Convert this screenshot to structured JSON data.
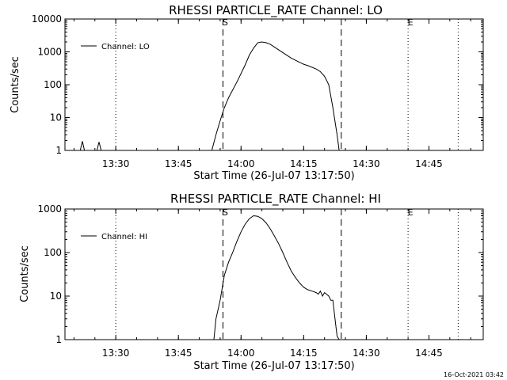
{
  "chart_data": [
    {
      "type": "line",
      "title": "RHESSI PARTICLE_RATE Channel: LO",
      "ylabel": "Counts/sec",
      "xlabel": "Start Time (26-Jul-07 13:17:50)",
      "legend": "Channel: LO",
      "legend_position": "top-left",
      "y_scale": "log",
      "xlim": [
        "13:17:50",
        "14:58:00"
      ],
      "ylim": [
        1,
        10000
      ],
      "x_tick_labels": [
        "13:30",
        "13:45",
        "14:00",
        "14:15",
        "14:30",
        "14:45"
      ],
      "y_tick_labels": [
        "1",
        "10",
        "100",
        "1000",
        "10000"
      ],
      "markers": [
        {
          "label": "S",
          "time": "13:55:40",
          "style": "dashed"
        },
        {
          "label": "",
          "time": "14:24:00",
          "style": "dashed"
        },
        {
          "label": "E",
          "time": "14:40:00",
          "style": "dotted"
        },
        {
          "label": "",
          "time": "13:30:00",
          "style": "dotted"
        },
        {
          "label": "",
          "time": "14:52:00",
          "style": "dotted"
        }
      ],
      "series": [
        {
          "name": "Channel: LO",
          "x": [
            "13:17:50",
            "13:21:30",
            "13:22:00",
            "13:22:30",
            "13:25:30",
            "13:26:00",
            "13:26:30",
            "13:53:00",
            "13:54:00",
            "13:55:00",
            "13:56:00",
            "13:57:00",
            "13:59:00",
            "14:01:00",
            "14:02:00",
            "14:03:00",
            "14:04:00",
            "14:05:00",
            "14:06:00",
            "14:07:00",
            "14:08:00",
            "14:10:00",
            "14:12:00",
            "14:14:00",
            "14:15:00",
            "14:16:00",
            "14:18:00",
            "14:19:00",
            "14:20:00",
            "14:21:00",
            "14:22:00",
            "14:23:00",
            "14:23:30"
          ],
          "y": [
            1,
            1,
            1.9,
            1,
            1,
            1.8,
            1,
            1,
            3,
            8,
            20,
            40,
            120,
            400,
            800,
            1300,
            1900,
            2000,
            1900,
            1700,
            1400,
            950,
            650,
            480,
            420,
            380,
            300,
            250,
            180,
            100,
            20,
            3,
            1
          ]
        }
      ]
    },
    {
      "type": "line",
      "title": "RHESSI PARTICLE_RATE Channel: HI",
      "ylabel": "Counts/sec",
      "xlabel": "Start Time (26-Jul-07 13:17:50)",
      "legend": "Channel: HI",
      "legend_position": "top-left",
      "y_scale": "log",
      "xlim": [
        "13:17:50",
        "14:58:00"
      ],
      "ylim": [
        1,
        1000
      ],
      "x_tick_labels": [
        "13:30",
        "13:45",
        "14:00",
        "14:15",
        "14:30",
        "14:45"
      ],
      "y_tick_labels": [
        "1",
        "10",
        "100",
        "1000"
      ],
      "markers": [
        {
          "label": "S",
          "time": "13:55:40",
          "style": "dashed"
        },
        {
          "label": "",
          "time": "14:24:00",
          "style": "dashed"
        },
        {
          "label": "E",
          "time": "14:40:00",
          "style": "dotted"
        },
        {
          "label": "",
          "time": "13:30:00",
          "style": "dotted"
        },
        {
          "label": "",
          "time": "14:52:00",
          "style": "dotted"
        }
      ],
      "series": [
        {
          "name": "Channel: HI",
          "x": [
            "13:53:30",
            "13:54:00",
            "13:55:00",
            "13:56:00",
            "13:57:00",
            "13:58:00",
            "13:59:00",
            "14:00:00",
            "14:01:00",
            "14:02:00",
            "14:03:00",
            "14:04:00",
            "14:05:00",
            "14:06:00",
            "14:07:00",
            "14:08:00",
            "14:09:00",
            "14:10:00",
            "14:11:00",
            "14:12:00",
            "14:13:00",
            "14:14:00",
            "14:15:00",
            "14:16:00",
            "14:17:00",
            "14:18:00",
            "14:18:30",
            "14:19:00",
            "14:19:30",
            "14:20:00",
            "14:20:30",
            "14:21:00",
            "14:21:30",
            "14:22:00",
            "14:22:30",
            "14:23:00",
            "14:23:30"
          ],
          "y": [
            1,
            3,
            8,
            30,
            60,
            100,
            180,
            300,
            450,
            600,
            700,
            680,
            600,
            480,
            350,
            240,
            160,
            100,
            60,
            38,
            27,
            20,
            16,
            14,
            13,
            12,
            11,
            13,
            10,
            12,
            11,
            10,
            8,
            8,
            3,
            1.2,
            1
          ]
        }
      ]
    }
  ],
  "footer": {
    "timestamp": "16-Oct-2021 03:42"
  }
}
